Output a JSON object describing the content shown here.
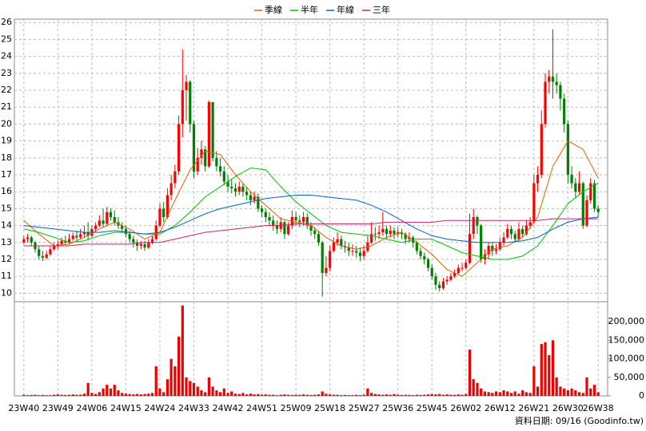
{
  "chart_data": {
    "type": "candlestick",
    "legend": "top",
    "up_color": "#ff0000",
    "down_color": "#008000",
    "volume_color": "#ee0000",
    "xlim": [
      -2.5,
      154.5
    ],
    "xticks": [
      {
        "value": 0,
        "label": "23W40"
      },
      {
        "value": 9,
        "label": "23W49"
      },
      {
        "value": 18,
        "label": "24W06"
      },
      {
        "value": 27,
        "label": "24W15"
      },
      {
        "value": 36,
        "label": "24W24"
      },
      {
        "value": 45,
        "label": "24W33"
      },
      {
        "value": 54,
        "label": "24W42"
      },
      {
        "value": 63,
        "label": "24W51"
      },
      {
        "value": 72,
        "label": "25W09"
      },
      {
        "value": 81,
        "label": "25W18"
      },
      {
        "value": 90,
        "label": "25W27"
      },
      {
        "value": 99,
        "label": "25W36"
      },
      {
        "value": 108,
        "label": "25W45"
      },
      {
        "value": 117,
        "label": "26W02"
      },
      {
        "value": 126,
        "label": "26W12"
      },
      {
        "value": 135,
        "label": "26W21"
      },
      {
        "value": 144,
        "label": "26W30"
      },
      {
        "value": 152,
        "label": "26W38"
      }
    ],
    "ylim": [
      9.5,
      26.2
    ],
    "yticks": [
      10,
      11,
      12,
      13,
      14,
      15,
      16,
      17,
      18,
      19,
      20,
      21,
      22,
      23,
      24,
      25,
      26
    ],
    "y2lim": [
      0,
      250000
    ],
    "y2ticks": [
      0,
      {
        "value": 50000,
        "label": "50,000"
      },
      {
        "value": 100000,
        "label": "100,000"
      },
      {
        "value": 150000,
        "label": "150,000"
      },
      {
        "value": 200000,
        "label": "200,000"
      }
    ],
    "grid": true,
    "footer": "資料日期: 09/16 (Goodinfo.tw)",
    "ohlc": [
      [
        13.0,
        13.4,
        12.9,
        13.2
      ],
      [
        13.2,
        13.5,
        13.0,
        13.3
      ],
      [
        13.3,
        13.4,
        12.8,
        13.0
      ],
      [
        13.0,
        13.1,
        12.4,
        12.6
      ],
      [
        12.6,
        12.8,
        12.0,
        12.2
      ],
      [
        12.2,
        12.5,
        11.9,
        12.1
      ],
      [
        12.1,
        12.5,
        12.0,
        12.3
      ],
      [
        12.3,
        12.8,
        12.2,
        12.6
      ],
      [
        12.6,
        13.0,
        12.5,
        12.8
      ],
      [
        12.8,
        13.1,
        12.6,
        12.9
      ],
      [
        12.9,
        13.3,
        12.8,
        13.1
      ],
      [
        13.1,
        13.4,
        12.9,
        13.0
      ],
      [
        13.0,
        13.5,
        12.9,
        13.2
      ],
      [
        13.2,
        13.6,
        13.1,
        13.4
      ],
      [
        13.4,
        13.7,
        13.1,
        13.3
      ],
      [
        13.3,
        13.8,
        13.2,
        13.5
      ],
      [
        13.5,
        14.0,
        13.3,
        13.6
      ],
      [
        13.6,
        14.2,
        13.2,
        13.4
      ],
      [
        13.4,
        14.0,
        13.3,
        13.8
      ],
      [
        13.8,
        14.2,
        13.6,
        14.0
      ],
      [
        14.0,
        14.6,
        13.9,
        14.3
      ],
      [
        14.3,
        15.0,
        13.9,
        14.1
      ],
      [
        14.1,
        15.1,
        14.0,
        14.8
      ],
      [
        14.8,
        15.0,
        14.3,
        14.5
      ],
      [
        14.5,
        14.9,
        14.0,
        14.2
      ],
      [
        14.2,
        14.5,
        13.8,
        14.0
      ],
      [
        14.0,
        14.2,
        13.6,
        13.8
      ],
      [
        13.8,
        14.0,
        13.3,
        13.5
      ],
      [
        13.5,
        13.7,
        13.0,
        13.2
      ],
      [
        13.2,
        13.4,
        12.7,
        13.0
      ],
      [
        13.0,
        13.2,
        12.5,
        12.8
      ],
      [
        12.8,
        13.1,
        12.6,
        12.9
      ],
      [
        12.9,
        13.1,
        12.5,
        12.7
      ],
      [
        12.7,
        13.2,
        12.6,
        13.0
      ],
      [
        13.0,
        13.4,
        12.9,
        13.2
      ],
      [
        13.2,
        14.3,
        13.1,
        14.0
      ],
      [
        14.0,
        15.3,
        13.9,
        15.0
      ],
      [
        15.0,
        15.4,
        14.2,
        14.5
      ],
      [
        14.5,
        16.2,
        14.4,
        15.8
      ],
      [
        15.8,
        17.0,
        15.5,
        16.5
      ],
      [
        16.5,
        17.6,
        16.2,
        17.2
      ],
      [
        17.2,
        20.5,
        17.0,
        20.0
      ],
      [
        20.0,
        24.4,
        19.2,
        22.0
      ],
      [
        22.0,
        22.9,
        20.2,
        22.5
      ],
      [
        22.5,
        22.6,
        19.5,
        20.0
      ],
      [
        20.0,
        20.2,
        16.8,
        17.2
      ],
      [
        17.2,
        18.6,
        17.0,
        18.0
      ],
      [
        18.0,
        19.0,
        17.6,
        18.5
      ],
      [
        18.5,
        18.7,
        17.2,
        17.5
      ],
      [
        17.5,
        21.4,
        17.4,
        21.3
      ],
      [
        21.3,
        21.3,
        17.8,
        18.0
      ],
      [
        18.0,
        18.4,
        17.2,
        17.5
      ],
      [
        17.5,
        18.0,
        16.9,
        17.2
      ],
      [
        17.2,
        17.5,
        16.4,
        16.6
      ],
      [
        16.6,
        17.0,
        16.0,
        16.3
      ],
      [
        16.3,
        16.7,
        15.9,
        16.2
      ],
      [
        16.2,
        16.5,
        15.7,
        16.0
      ],
      [
        16.0,
        16.6,
        15.8,
        16.3
      ],
      [
        16.3,
        16.5,
        15.7,
        16.0
      ],
      [
        16.0,
        16.3,
        15.5,
        15.8
      ],
      [
        15.8,
        16.0,
        15.2,
        15.5
      ],
      [
        15.5,
        16.0,
        15.3,
        15.7
      ],
      [
        15.7,
        15.9,
        14.8,
        15.0
      ],
      [
        15.0,
        15.2,
        14.5,
        14.8
      ],
      [
        14.8,
        15.0,
        14.2,
        14.5
      ],
      [
        14.5,
        14.8,
        14.0,
        14.3
      ],
      [
        14.3,
        14.6,
        13.7,
        14.0
      ],
      [
        14.0,
        14.3,
        13.5,
        13.8
      ],
      [
        13.8,
        14.5,
        13.6,
        14.2
      ],
      [
        14.2,
        14.3,
        13.2,
        13.5
      ],
      [
        13.5,
        14.2,
        13.4,
        14.0
      ],
      [
        14.0,
        14.9,
        13.8,
        14.5
      ],
      [
        14.5,
        14.8,
        14.0,
        14.3
      ],
      [
        14.3,
        14.6,
        13.9,
        14.2
      ],
      [
        14.2,
        14.8,
        14.0,
        14.5
      ],
      [
        14.5,
        14.7,
        13.8,
        14.0
      ],
      [
        14.0,
        14.2,
        13.4,
        13.7
      ],
      [
        13.7,
        13.9,
        13.2,
        13.5
      ],
      [
        13.5,
        13.7,
        12.8,
        13.0
      ],
      [
        13.0,
        13.1,
        9.8,
        11.2
      ],
      [
        11.2,
        12.2,
        11.0,
        11.5
      ],
      [
        11.5,
        12.8,
        11.3,
        12.5
      ],
      [
        12.5,
        13.3,
        12.4,
        13.0
      ],
      [
        13.0,
        13.6,
        12.8,
        13.2
      ],
      [
        13.2,
        13.4,
        12.6,
        12.8
      ],
      [
        12.8,
        13.1,
        12.4,
        12.7
      ],
      [
        12.7,
        13.0,
        12.2,
        12.5
      ],
      [
        12.5,
        12.9,
        12.2,
        12.5
      ],
      [
        12.5,
        12.8,
        12.1,
        12.4
      ],
      [
        12.4,
        12.7,
        11.9,
        12.2
      ],
      [
        12.2,
        12.8,
        12.0,
        12.5
      ],
      [
        12.5,
        13.4,
        12.4,
        13.0
      ],
      [
        13.0,
        14.2,
        12.9,
        13.5
      ],
      [
        13.5,
        13.9,
        13.1,
        13.5
      ],
      [
        13.5,
        14.0,
        13.2,
        13.6
      ],
      [
        13.6,
        14.8,
        13.4,
        13.8
      ],
      [
        13.8,
        14.0,
        13.2,
        13.5
      ],
      [
        13.5,
        14.0,
        13.3,
        13.7
      ],
      [
        13.7,
        13.9,
        13.2,
        13.5
      ],
      [
        13.5,
        13.9,
        13.3,
        13.6
      ],
      [
        13.6,
        13.8,
        13.2,
        13.5
      ],
      [
        13.5,
        13.6,
        12.9,
        13.2
      ],
      [
        13.2,
        13.6,
        13.0,
        13.3
      ],
      [
        13.3,
        13.4,
        12.7,
        13.0
      ],
      [
        13.0,
        13.1,
        12.3,
        12.5
      ],
      [
        12.5,
        12.7,
        12.0,
        12.2
      ],
      [
        12.2,
        12.4,
        11.7,
        12.0
      ],
      [
        12.0,
        12.1,
        11.3,
        11.5
      ],
      [
        11.5,
        11.7,
        10.8,
        11.0
      ],
      [
        11.0,
        11.2,
        10.2,
        10.5
      ],
      [
        10.5,
        10.7,
        10.1,
        10.3
      ],
      [
        10.3,
        10.9,
        10.2,
        10.7
      ],
      [
        10.7,
        11.0,
        10.5,
        10.8
      ],
      [
        10.8,
        11.2,
        10.7,
        11.0
      ],
      [
        11.0,
        11.4,
        10.9,
        11.2
      ],
      [
        11.2,
        11.7,
        11.1,
        11.5
      ],
      [
        11.5,
        11.8,
        11.3,
        11.5
      ],
      [
        11.5,
        12.0,
        11.4,
        11.8
      ],
      [
        11.8,
        14.7,
        11.7,
        13.5
      ],
      [
        13.5,
        15.0,
        13.2,
        14.5
      ],
      [
        14.5,
        14.6,
        13.5,
        14.0
      ],
      [
        14.0,
        14.1,
        11.8,
        12.0
      ],
      [
        12.0,
        12.6,
        11.7,
        12.3
      ],
      [
        12.3,
        13.0,
        12.0,
        12.8
      ],
      [
        12.8,
        13.0,
        12.2,
        12.5
      ],
      [
        12.5,
        12.9,
        12.3,
        12.6
      ],
      [
        12.6,
        13.3,
        12.5,
        13.0
      ],
      [
        13.0,
        13.6,
        12.8,
        13.3
      ],
      [
        13.3,
        14.1,
        13.2,
        13.8
      ],
      [
        13.8,
        14.0,
        13.2,
        13.5
      ],
      [
        13.5,
        13.7,
        13.0,
        13.2
      ],
      [
        13.2,
        14.2,
        13.1,
        13.8
      ],
      [
        13.8,
        14.0,
        13.3,
        13.5
      ],
      [
        13.5,
        14.3,
        13.4,
        14.0
      ],
      [
        14.0,
        14.5,
        13.8,
        14.2
      ],
      [
        14.2,
        17.0,
        14.1,
        16.5
      ],
      [
        16.5,
        17.5,
        16.0,
        17.0
      ],
      [
        17.0,
        20.8,
        16.8,
        20.0
      ],
      [
        20.0,
        23.0,
        19.8,
        22.5
      ],
      [
        22.5,
        23.2,
        21.8,
        22.8
      ],
      [
        22.8,
        25.6,
        21.5,
        22.5
      ],
      [
        22.5,
        23.0,
        21.8,
        22.3
      ],
      [
        22.3,
        22.5,
        20.8,
        21.5
      ],
      [
        21.5,
        21.8,
        19.5,
        20.0
      ],
      [
        20.0,
        20.2,
        16.5,
        17.0
      ],
      [
        17.0,
        17.5,
        16.2,
        16.5
      ],
      [
        16.5,
        16.8,
        15.6,
        16.0
      ],
      [
        16.0,
        17.2,
        15.8,
        16.5
      ],
      [
        16.5,
        16.6,
        13.8,
        14.0
      ],
      [
        14.0,
        15.8,
        13.9,
        15.5
      ],
      [
        15.5,
        16.8,
        15.3,
        16.5
      ],
      [
        16.5,
        16.7,
        14.8,
        15.0
      ],
      [
        15.0,
        15.2,
        14.5,
        14.8
      ]
    ],
    "volume": [
      3000,
      2000,
      2500,
      3000,
      2000,
      2500,
      2000,
      2000,
      3000,
      4000,
      3000,
      2500,
      3000,
      4000,
      3000,
      3500,
      6000,
      35000,
      8000,
      5000,
      10000,
      20000,
      30000,
      20000,
      30000,
      15000,
      8000,
      6000,
      5000,
      4000,
      5000,
      4000,
      5000,
      6000,
      8000,
      80000,
      20000,
      10000,
      45000,
      100000,
      80000,
      160000,
      244000,
      50000,
      40000,
      35000,
      25000,
      15000,
      10000,
      50000,
      25000,
      15000,
      10000,
      20000,
      8000,
      12000,
      6000,
      5000,
      8000,
      4000,
      6000,
      4000,
      5000,
      3000,
      4000,
      3000,
      3000,
      2000,
      3000,
      4000,
      3000,
      2500,
      3000,
      3000,
      4000,
      3000,
      2500,
      3000,
      4000,
      12000,
      6000,
      4000,
      3000,
      3000,
      2000,
      2500,
      2000,
      2000,
      3000,
      2000,
      3000,
      20000,
      8000,
      5000,
      4000,
      3000,
      4000,
      3000,
      5000,
      3000,
      2500,
      3000,
      2500,
      2000,
      3000,
      2500,
      3000,
      4000,
      5000,
      4000,
      5000,
      3000,
      4000,
      3000,
      3000,
      4000,
      3000,
      5000,
      125000,
      45000,
      35000,
      20000,
      12000,
      10000,
      8000,
      12000,
      10000,
      15000,
      12000,
      8000,
      12000,
      6000,
      15000,
      10000,
      8000,
      80000,
      25000,
      140000,
      145000,
      110000,
      150000,
      50000,
      25000,
      20000,
      15000,
      20000,
      15000,
      10000,
      8000,
      50000,
      20000,
      30000,
      10000
    ],
    "ma_x": [
      0,
      4,
      8,
      12,
      16,
      20,
      24,
      28,
      32,
      36,
      40,
      44,
      48,
      52,
      56,
      60,
      64,
      68,
      72,
      76,
      80,
      84,
      88,
      92,
      96,
      100,
      104,
      108,
      112,
      116,
      120,
      124,
      128,
      132,
      136,
      140,
      144,
      148,
      152
    ],
    "series": [
      {
        "name": "季線",
        "color": "#e06000",
        "values": [
          14.3,
          13.5,
          12.8,
          12.9,
          13.3,
          13.8,
          14.2,
          13.8,
          13.2,
          13.6,
          15.5,
          17.3,
          18.4,
          18.2,
          17.0,
          16.0,
          15.2,
          14.4,
          14.2,
          14.0,
          13.3,
          12.8,
          12.6,
          12.8,
          13.3,
          13.6,
          13.0,
          12.3,
          11.4,
          11.0,
          11.8,
          12.6,
          12.8,
          13.3,
          14.5,
          17.5,
          19.0,
          18.5,
          16.8
        ]
      },
      {
        "name": "半年",
        "color": "#00c000",
        "values": [
          13.8,
          13.6,
          13.3,
          13.0,
          13.1,
          13.4,
          13.6,
          13.6,
          13.5,
          13.5,
          14.0,
          14.8,
          15.7,
          16.3,
          16.9,
          17.4,
          17.3,
          16.3,
          15.4,
          14.7,
          14.0,
          13.6,
          13.5,
          13.4,
          13.2,
          13.0,
          13.2,
          13.2,
          12.8,
          12.4,
          12.2,
          12.0,
          12.0,
          12.2,
          12.8,
          14.0,
          15.3,
          16.0,
          16.5
        ]
      },
      {
        "name": "年線",
        "color": "#0060d0",
        "values": [
          14.0,
          13.9,
          13.8,
          13.7,
          13.6,
          13.6,
          13.7,
          13.6,
          13.5,
          13.6,
          13.9,
          14.3,
          14.7,
          15.0,
          15.2,
          15.4,
          15.6,
          15.7,
          15.8,
          15.8,
          15.7,
          15.6,
          15.5,
          15.2,
          14.8,
          14.3,
          13.8,
          13.4,
          13.2,
          13.1,
          13.0,
          13.0,
          13.0,
          13.1,
          13.3,
          13.8,
          14.2,
          14.4,
          14.5
        ]
      },
      {
        "name": "三年",
        "color": "#d0206a",
        "values": [
          12.8,
          12.8,
          12.8,
          12.8,
          12.9,
          12.9,
          12.9,
          12.9,
          13.0,
          13.0,
          13.2,
          13.4,
          13.6,
          13.7,
          13.8,
          13.9,
          14.0,
          14.0,
          14.1,
          14.1,
          14.1,
          14.1,
          14.1,
          14.1,
          14.2,
          14.2,
          14.2,
          14.2,
          14.3,
          14.3,
          14.3,
          14.3,
          14.3,
          14.3,
          14.3,
          14.4,
          14.4,
          14.4,
          14.4
        ]
      }
    ]
  }
}
